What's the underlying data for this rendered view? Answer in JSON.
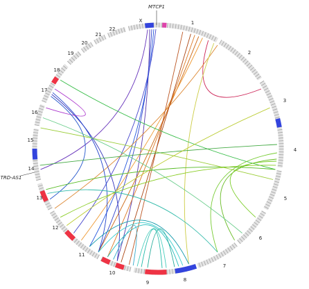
{
  "chromosomes": [
    "1",
    "2",
    "3",
    "4",
    "5",
    "6",
    "7",
    "8",
    "9",
    "10",
    "11",
    "12",
    "13",
    "14",
    "15",
    "16",
    "17",
    "18",
    "19",
    "20",
    "21",
    "22",
    "X"
  ],
  "genes": [
    "MTCP1",
    "TRD-AS1"
  ]
}
